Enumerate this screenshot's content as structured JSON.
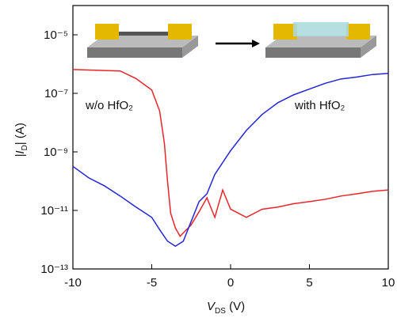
{
  "chart_data": {
    "type": "line",
    "log_y": true,
    "x_label": [
      "V",
      "DS",
      " (V)"
    ],
    "y_label": [
      "|I",
      "D",
      "| (A)"
    ],
    "annotations": [
      "w/o HfO₂",
      "with HfO₂"
    ],
    "xlim": [
      -10,
      10
    ],
    "xticks": [
      -10,
      -5,
      0,
      5,
      10
    ],
    "ylim": [
      1e-13,
      0.0001
    ],
    "yticks": [
      {
        "value": 1e-13,
        "label": "10⁻¹³"
      },
      {
        "value": 1e-11,
        "label": "10⁻¹¹"
      },
      {
        "value": 1e-09,
        "label": "10⁻⁹"
      },
      {
        "value": 1e-07,
        "label": "10⁻⁷"
      },
      {
        "value": 1e-05,
        "label": "10⁻⁵"
      }
    ],
    "series": [
      {
        "color": "#e8252a",
        "x": [
          -10,
          -7,
          -6,
          -5,
          -4.5,
          -4.2,
          -4,
          -3.8,
          -3.5,
          -3.2,
          -3,
          -2.5,
          -2,
          -1.5,
          -1,
          -0.5,
          0,
          0.5,
          1,
          2,
          3,
          4,
          5,
          6,
          7,
          8,
          9,
          10
        ],
        "values": [
          6.5e-07,
          5.8e-07,
          3.2e-07,
          1.3e-07,
          2.5e-08,
          2e-09,
          1e-10,
          8e-12,
          2.5e-12,
          1.3e-12,
          1.7e-12,
          3.2e-12,
          9e-12,
          2.7e-11,
          5.8e-12,
          5e-11,
          1.1e-11,
          8e-12,
          5.8e-12,
          1.1e-11,
          1.3e-11,
          1.7e-11,
          2e-11,
          2.4e-11,
          3.1e-11,
          3.7e-11,
          4.5e-11,
          5e-11
        ]
      },
      {
        "color": "#2424d8",
        "x": [
          -10,
          -9,
          -8,
          -7,
          -6,
          -5,
          -4.5,
          -4,
          -3.5,
          -3,
          -2.5,
          -2,
          -1.5,
          -1,
          0,
          1,
          2,
          3,
          4,
          5,
          6,
          7,
          8,
          9,
          10
        ],
        "values": [
          3.2e-10,
          1.3e-10,
          6.9e-11,
          3.1e-11,
          1.3e-11,
          5.8e-12,
          2.2e-12,
          8.9e-13,
          6e-13,
          8.9e-13,
          4.2e-12,
          2e-11,
          3.7e-11,
          1.7e-10,
          1.1e-09,
          5.4e-09,
          1.9e-08,
          4.8e-08,
          8.9e-08,
          1.4e-07,
          2.2e-07,
          3.1e-07,
          3.6e-07,
          4.4e-07,
          4.8e-07
        ]
      }
    ]
  }
}
